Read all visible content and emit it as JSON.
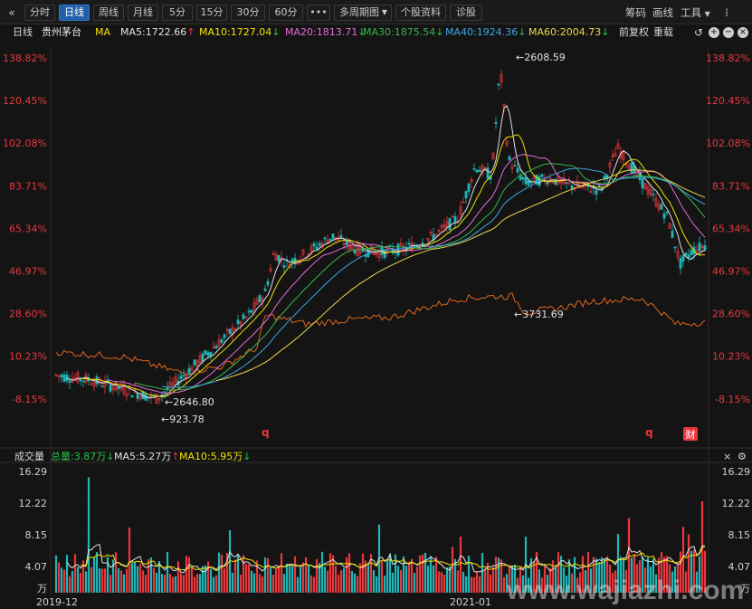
{
  "toolbar": {
    "back_icon": "double-chevron-left-icon",
    "periods": [
      "分时",
      "日线",
      "周线",
      "月线",
      "5分",
      "15分",
      "30分",
      "60分"
    ],
    "active_period": "日线",
    "more_label": "•••",
    "multi_period_label": "多周期图",
    "stock_info_label": "个股资料",
    "diagnose_label": "诊股",
    "right_items": [
      "筹码",
      "画线",
      "工具"
    ]
  },
  "ma_bar": {
    "period_label": "日线",
    "stock_name": "贵州茅台",
    "ma_label": "MA",
    "items": [
      {
        "text": "MA5:1722.66",
        "arrow": "↑",
        "color": "#e0e0e0",
        "arrow_dir": "up"
      },
      {
        "text": "MA10:1727.04",
        "arrow": "↓",
        "color": "#f2e100",
        "arrow_dir": "down"
      },
      {
        "text": "MA20:1813.71",
        "arrow": "↓",
        "color": "#e36bd6",
        "arrow_dir": "down"
      },
      {
        "text": "MA30:1875.54",
        "arrow": "↓",
        "color": "#39b54a",
        "arrow_dir": "down"
      },
      {
        "text": "MA40:1924.36",
        "arrow": "↓",
        "color": "#3ba7e0",
        "arrow_dir": "down"
      },
      {
        "text": "MA60:2004.73",
        "arrow": "↓",
        "color": "#f0d64a",
        "arrow_dir": "down"
      }
    ],
    "adjust_label": "前复权",
    "overlay_label": "重载"
  },
  "price_chart": {
    "y_axis_labels": [
      "138.82%",
      "120.45%",
      "102.08%",
      "83.71%",
      "65.34%",
      "46.97%",
      "28.60%",
      "10.23%",
      "-8.15%"
    ],
    "annotations": {
      "high": "2608.59",
      "low1": "2646.80",
      "low2": "923.78",
      "compare_high": "3731.69"
    },
    "markers": [
      "q",
      "q"
    ],
    "finance_badge": "财"
  },
  "volume_chart": {
    "title": "成交量",
    "total": "总量:3.87万",
    "total_arrow": "↓",
    "ma5": "MA5:5.27万",
    "ma5_arrow": "↑",
    "ma10": "MA10:5.95万",
    "ma10_arrow": "↓",
    "y_axis_labels": [
      "16.29",
      "12.22",
      "8.15",
      "4.07"
    ],
    "unit": "万",
    "x_axis_labels": [
      "2019-12",
      "2021-01"
    ]
  },
  "watermark": "www.wajiazhi.com",
  "colors": {
    "up": "#e8383d",
    "down": "#23c343",
    "compare": "#e0661a",
    "teal": "#1fb6b8",
    "axis": "#e8383d"
  }
}
